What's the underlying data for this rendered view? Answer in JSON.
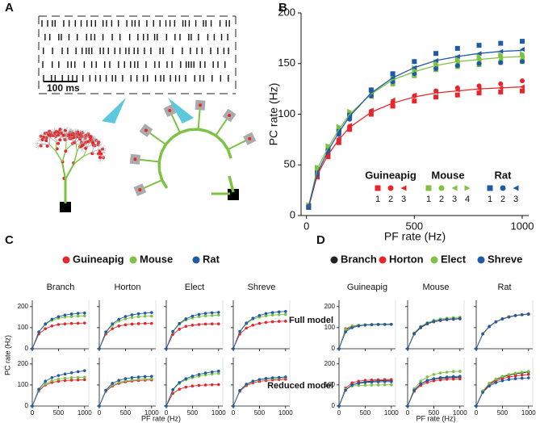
{
  "panel_a": {
    "label": "A",
    "scale_bar": "100 ms"
  },
  "chart_data": [
    {
      "type": "scatter",
      "panel_label": "B",
      "xlabel": "PF rate (Hz)",
      "ylabel": "PC rate (Hz)",
      "xlim": [
        -25,
        1030
      ],
      "ylim": [
        0,
        200
      ],
      "xticks": [
        0,
        500,
        1000
      ],
      "yticks": [
        0,
        50,
        100,
        150,
        200
      ],
      "x": [
        10,
        50,
        100,
        150,
        200,
        300,
        400,
        500,
        600,
        700,
        800,
        900,
        1000
      ],
      "groups": [
        {
          "name": "Guineapig",
          "color": "#e8262a",
          "fit": [
            8,
            40,
            60,
            75,
            87,
            102,
            111,
            117,
            121,
            123,
            125,
            126,
            127
          ]
        },
        {
          "name": "Mouse",
          "color": "#7dc242",
          "fit": [
            9,
            46,
            67,
            85,
            100,
            120,
            134,
            142,
            148,
            152,
            154,
            156,
            157
          ]
        },
        {
          "name": "Rat",
          "color": "#1f5aa6",
          "fit": [
            9,
            42,
            64,
            82,
            98,
            121,
            136,
            146,
            153,
            157,
            160,
            162,
            163
          ]
        }
      ],
      "series": [
        {
          "name": "1",
          "group": 0,
          "marker": "square",
          "values": [
            9,
            38,
            58,
            72,
            85,
            100,
            108,
            113,
            117,
            119,
            121,
            122,
            123
          ]
        },
        {
          "name": "2",
          "group": 0,
          "marker": "circle",
          "values": [
            8,
            40,
            60,
            75,
            88,
            103,
            112,
            118,
            123,
            126,
            128,
            130,
            133
          ]
        },
        {
          "name": "3",
          "group": 0,
          "marker": "triangle-left",
          "values": [
            10,
            42,
            62,
            76,
            89,
            104,
            114,
            119,
            122,
            124,
            125,
            126,
            127
          ]
        },
        {
          "name": "1",
          "group": 1,
          "marker": "square",
          "values": [
            8,
            45,
            66,
            84,
            98,
            118,
            130,
            138,
            144,
            147,
            149,
            151,
            152
          ]
        },
        {
          "name": "2",
          "group": 1,
          "marker": "circle",
          "values": [
            10,
            47,
            68,
            86,
            101,
            122,
            135,
            143,
            149,
            153,
            155,
            157,
            158
          ]
        },
        {
          "name": "3",
          "group": 1,
          "marker": "triangle-left",
          "values": [
            9,
            44,
            65,
            82,
            96,
            117,
            131,
            140,
            146,
            150,
            152,
            154,
            155
          ]
        },
        {
          "name": "4",
          "group": 1,
          "marker": "triangle-right",
          "values": [
            11,
            48,
            69,
            88,
            103,
            124,
            138,
            146,
            152,
            156,
            158,
            159,
            160
          ]
        },
        {
          "name": "1",
          "group": 2,
          "marker": "square",
          "values": [
            8,
            42,
            64,
            83,
            99,
            124,
            140,
            152,
            160,
            165,
            168,
            170,
            172
          ]
        },
        {
          "name": "2",
          "group": 2,
          "marker": "circle",
          "values": [
            9,
            40,
            62,
            80,
            95,
            118,
            132,
            140,
            145,
            148,
            150,
            151,
            152
          ]
        },
        {
          "name": "3",
          "group": 2,
          "marker": "triangle-left",
          "values": [
            10,
            43,
            65,
            84,
            100,
            122,
            136,
            146,
            153,
            157,
            160,
            162,
            164
          ]
        }
      ]
    },
    {
      "type": "line",
      "panel_label": "C",
      "xlabel": "PF rate (Hz)",
      "ylabel": "PC rate (Hz)",
      "xlim": [
        0,
        1080
      ],
      "ylim": [
        0,
        230
      ],
      "xticks": [
        0,
        500,
        1000
      ],
      "yticks": [
        0,
        100,
        200
      ],
      "columns": [
        "Branch",
        "Horton",
        "Elect",
        "Shreve"
      ],
      "series": [
        {
          "name": "Guineapig",
          "color": "#e8262a"
        },
        {
          "name": "Mouse",
          "color": "#7dc242"
        },
        {
          "name": "Rat",
          "color": "#1f5aa6"
        }
      ],
      "x": [
        0,
        125,
        250,
        375,
        500,
        625,
        750,
        875,
        1000
      ],
      "rows": [
        [
          [
            [
              0,
              70,
              95,
              108,
              115,
              118,
              120,
              121,
              122
            ],
            [
              0,
              80,
              115,
              135,
              145,
              150,
              153,
              155,
              156
            ],
            [
              0,
              80,
              118,
              140,
              152,
              160,
              165,
              168,
              170
            ]
          ],
          [
            [
              0,
              70,
              95,
              108,
              114,
              117,
              119,
              120,
              120
            ],
            [
              0,
              78,
              112,
              132,
              142,
              148,
              152,
              154,
              155
            ],
            [
              0,
              80,
              118,
              140,
              153,
              161,
              166,
              169,
              172
            ]
          ],
          [
            [
              0,
              68,
              93,
              106,
              112,
              115,
              117,
              118,
              118
            ],
            [
              0,
              80,
              116,
              136,
              146,
              152,
              156,
              158,
              160
            ],
            [
              0,
              82,
              120,
              142,
              155,
              163,
              168,
              171,
              173
            ]
          ],
          [
            [
              0,
              70,
              98,
              112,
              120,
              125,
              128,
              130,
              131
            ],
            [
              0,
              80,
              118,
              140,
              150,
              156,
              160,
              162,
              163
            ],
            [
              0,
              82,
              122,
              145,
              158,
              167,
              172,
              175,
              177
            ]
          ]
        ],
        [
          [
            [
              0,
              72,
              100,
              112,
              118,
              121,
              123,
              124,
              125
            ],
            [
              0,
              75,
              105,
              120,
              128,
              132,
              135,
              136,
              137
            ],
            [
              0,
              80,
              118,
              135,
              145,
              152,
              158,
              163,
              168
            ]
          ],
          [
            [
              0,
              70,
              95,
              108,
              115,
              119,
              121,
              123,
              124
            ],
            [
              0,
              72,
              100,
              113,
              120,
              124,
              127,
              128,
              129
            ],
            [
              0,
              75,
              108,
              122,
              130,
              135,
              138,
              140,
              141
            ]
          ],
          [
            [
              0,
              60,
              80,
              90,
              95,
              98,
              100,
              101,
              102
            ],
            [
              0,
              75,
              108,
              125,
              135,
              142,
              148,
              152,
              155
            ],
            [
              0,
              78,
              112,
              130,
              142,
              150,
              157,
              162,
              166
            ]
          ],
          [
            [
              0,
              70,
              97,
              110,
              117,
              121,
              124,
              126,
              127
            ],
            [
              0,
              72,
              102,
              116,
              124,
              128,
              131,
              133,
              135
            ],
            [
              0,
              74,
              104,
              118,
              126,
              131,
              134,
              136,
              138
            ]
          ]
        ]
      ]
    },
    {
      "type": "line",
      "panel_label": "D",
      "xlabel": "PF rate (Hz)",
      "xlim": [
        0,
        1080
      ],
      "ylim": [
        0,
        230
      ],
      "xticks": [
        0,
        500,
        1000
      ],
      "yticks": [
        0,
        100,
        200
      ],
      "columns": [
        "Guineapig",
        "Mouse",
        "Rat"
      ],
      "row_labels": [
        "Full model",
        "Reduced model"
      ],
      "series": [
        {
          "name": "Branch",
          "color": "#222222"
        },
        {
          "name": "Horton",
          "color": "#e8262a"
        },
        {
          "name": "Elect",
          "color": "#7dc242"
        },
        {
          "name": "Shreve",
          "color": "#1f5aa6"
        }
      ],
      "x": [
        0,
        125,
        250,
        375,
        500,
        625,
        750,
        875,
        1000
      ],
      "rows": [
        [
          [
            [
              0,
              88,
              105,
              111,
              114,
              115,
              116,
              116,
              116
            ],
            [
              0,
              95,
              108,
              112,
              114,
              115,
              115,
              116,
              116
            ],
            [
              0,
              92,
              107,
              112,
              114,
              115,
              116,
              116,
              116
            ],
            [
              0,
              80,
              100,
              108,
              112,
              114,
              115,
              115,
              116
            ]
          ],
          [
            [
              0,
              70,
              100,
              118,
              128,
              134,
              138,
              140,
              142
            ],
            [
              0,
              72,
              102,
              119,
              129,
              135,
              139,
              141,
              143
            ],
            [
              0,
              75,
              106,
              124,
              135,
              141,
              145,
              148,
              150
            ],
            [
              0,
              72,
              103,
              120,
              130,
              136,
              140,
              142,
              144
            ]
          ],
          [
            [
              0,
              70,
              105,
              128,
              142,
              152,
              158,
              162,
              165
            ],
            [
              0,
              72,
              107,
              129,
              143,
              152,
              158,
              162,
              165
            ],
            [
              0,
              71,
              106,
              128,
              142,
              151,
              157,
              161,
              164
            ],
            [
              0,
              70,
              105,
              127,
              141,
              150,
              157,
              161,
              164
            ]
          ]
        ],
        [
          [
            [
              0,
              78,
              100,
              110,
              115,
              118,
              120,
              121,
              122
            ],
            [
              0,
              85,
              110,
              118,
              122,
              124,
              125,
              126,
              126
            ],
            [
              0,
              80,
              95,
              98,
              99,
              100,
              100,
              101,
              101
            ],
            [
              0,
              75,
              100,
              108,
              112,
              114,
              115,
              116,
              116
            ]
          ],
          [
            [
              0,
              75,
              105,
              120,
              128,
              132,
              134,
              136,
              137
            ],
            [
              0,
              70,
              98,
              112,
              120,
              124,
              127,
              128,
              129
            ],
            [
              0,
              82,
              118,
              138,
              150,
              157,
              161,
              164,
              165
            ],
            [
              0,
              75,
              106,
              122,
              130,
              135,
              138,
              140,
              141
            ]
          ],
          [
            [
              0,
              70,
              105,
              125,
              138,
              147,
              153,
              158,
              162
            ],
            [
              0,
              68,
              100,
              118,
              130,
              138,
              143,
              147,
              150
            ],
            [
              0,
              72,
              108,
              128,
              141,
              150,
              156,
              161,
              165
            ],
            [
              0,
              65,
              95,
              111,
              120,
              126,
              130,
              132,
              134
            ]
          ]
        ]
      ]
    }
  ]
}
